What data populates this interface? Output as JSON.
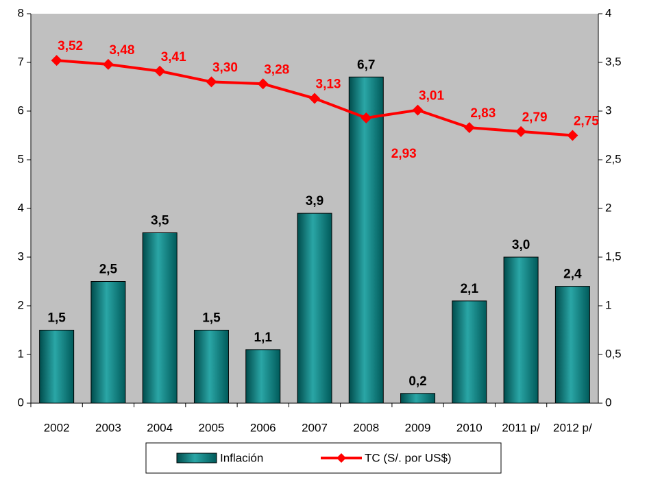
{
  "chart_data": {
    "type": "bar-line",
    "categories": [
      "2002",
      "2003",
      "2004",
      "2005",
      "2006",
      "2007",
      "2008",
      "2009",
      "2010",
      "2011 p/",
      "2012 p/"
    ],
    "series": [
      {
        "name": "Inflación",
        "color": "#008080",
        "values": [
          1.5,
          2.5,
          3.5,
          1.5,
          1.1,
          3.9,
          6.7,
          0.2,
          2.1,
          3.0,
          2.4
        ],
        "value_labels": [
          "1,5",
          "2,5",
          "3,5",
          "1,5",
          "1,1",
          "3,9",
          "6,7",
          "0,2",
          "2,1",
          "3,0",
          "2,4"
        ]
      },
      {
        "name": "TC (S/. por US$)",
        "color": "#ff0000",
        "axis": "y2",
        "values": [
          3.52,
          3.48,
          3.41,
          3.3,
          3.28,
          3.13,
          2.93,
          3.01,
          2.83,
          2.79,
          2.75
        ],
        "value_labels": [
          "3,52",
          "3,48",
          "3,41",
          "3,30",
          "3,28",
          "3,13",
          "2,93",
          "3,01",
          "2,83",
          "2,79",
          "2,75"
        ]
      }
    ],
    "ylim": [
      0,
      8
    ],
    "yticks": [
      0,
      1,
      2,
      3,
      4,
      5,
      6,
      7,
      8
    ],
    "y2lim": [
      0,
      4
    ],
    "y2ticks": [
      0,
      {
        "value": 0.5,
        "label": "0,5"
      },
      1,
      {
        "value": 1.5,
        "label": "1,5"
      },
      2,
      {
        "value": 2.5,
        "label": "2,5"
      },
      3,
      {
        "value": 3.5,
        "label": "3,5"
      },
      4
    ],
    "plot_background": "#c0c0c0"
  }
}
